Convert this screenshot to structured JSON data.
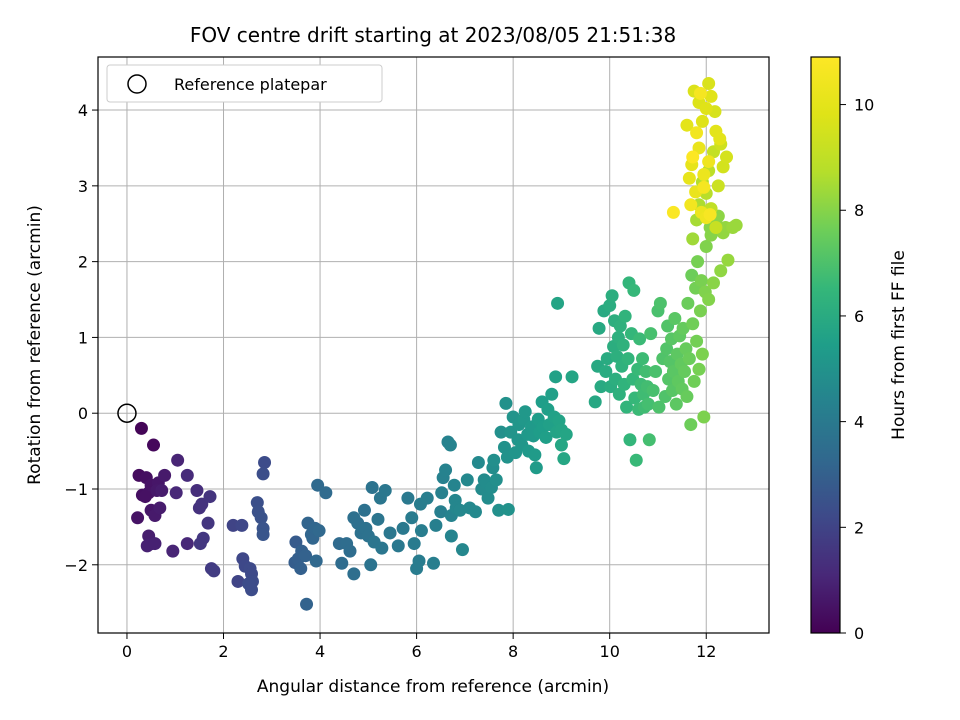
{
  "chart_data": {
    "type": "scatter",
    "title": "FOV centre drift starting at 2023/08/05 21:51:38",
    "xlabel": "Angular distance from reference (arcmin)",
    "ylabel": "Rotation from reference (arcmin)",
    "xlim": [
      -0.6,
      13.3
    ],
    "ylim": [
      -2.9,
      4.7
    ],
    "xticks": [
      0,
      2,
      4,
      6,
      8,
      10,
      12
    ],
    "yticks": [
      -2,
      -1,
      0,
      1,
      2,
      3,
      4
    ],
    "grid": true,
    "legend": {
      "placement": "top-left",
      "entries": [
        "Reference platepar"
      ]
    },
    "reference_point": {
      "x": 0,
      "y": 0,
      "label": "Reference platepar"
    },
    "colorbar": {
      "label": "Hours from first FF file",
      "colormap": "viridis",
      "range": [
        0,
        10.9
      ],
      "ticks": [
        0,
        2,
        4,
        6,
        8,
        10
      ]
    },
    "points": [
      [
        0.3,
        -0.2,
        0.1
      ],
      [
        0.55,
        -0.42,
        0.2
      ],
      [
        0.25,
        -0.82,
        0.3
      ],
      [
        0.4,
        -0.85,
        0.4
      ],
      [
        0.5,
        -0.95,
        0.5
      ],
      [
        0.32,
        -1.08,
        0.4
      ],
      [
        0.45,
        -1.05,
        0.5
      ],
      [
        0.38,
        -1.1,
        0.45
      ],
      [
        0.65,
        -0.92,
        0.6
      ],
      [
        0.78,
        -0.82,
        0.7
      ],
      [
        0.62,
        -1.02,
        0.65
      ],
      [
        0.72,
        -1.02,
        0.75
      ],
      [
        0.22,
        -1.38,
        0.5
      ],
      [
        0.5,
        -1.28,
        0.6
      ],
      [
        0.58,
        -1.35,
        0.7
      ],
      [
        0.68,
        -1.25,
        0.75
      ],
      [
        0.45,
        -1.62,
        0.8
      ],
      [
        0.52,
        -1.72,
        0.85
      ],
      [
        0.42,
        -1.75,
        0.9
      ],
      [
        0.58,
        -1.72,
        0.9
      ],
      [
        0.95,
        -1.82,
        1.0
      ],
      [
        1.25,
        -1.72,
        1.1
      ],
      [
        1.05,
        -0.62,
        1.0
      ],
      [
        1.02,
        -1.05,
        1.1
      ],
      [
        1.25,
        -0.82,
        1.2
      ],
      [
        1.45,
        -1.02,
        1.3
      ],
      [
        1.5,
        -1.25,
        1.4
      ],
      [
        1.55,
        -1.2,
        1.45
      ],
      [
        1.72,
        -1.1,
        1.5
      ],
      [
        1.68,
        -1.45,
        1.55
      ],
      [
        1.58,
        -1.65,
        1.6
      ],
      [
        1.52,
        -1.72,
        1.6
      ],
      [
        1.75,
        -2.05,
        1.7
      ],
      [
        1.8,
        -2.08,
        1.75
      ],
      [
        2.2,
        -1.48,
        2.0
      ],
      [
        2.38,
        -1.48,
        2.1
      ],
      [
        2.3,
        -2.22,
        2.0
      ],
      [
        2.4,
        -1.92,
        2.1
      ],
      [
        2.45,
        -2.02,
        2.15
      ],
      [
        2.55,
        -2.05,
        2.2
      ],
      [
        2.58,
        -2.12,
        2.2
      ],
      [
        2.6,
        -2.22,
        2.25
      ],
      [
        2.52,
        -2.25,
        2.3
      ],
      [
        2.58,
        -2.33,
        2.3
      ],
      [
        2.85,
        -0.65,
        2.3
      ],
      [
        2.82,
        -0.8,
        2.35
      ],
      [
        2.7,
        -1.18,
        2.4
      ],
      [
        2.72,
        -1.3,
        2.45
      ],
      [
        2.78,
        -1.38,
        2.5
      ],
      [
        2.82,
        -1.52,
        2.55
      ],
      [
        2.82,
        -1.6,
        2.6
      ],
      [
        3.5,
        -1.7,
        2.8
      ],
      [
        3.48,
        -1.97,
        2.9
      ],
      [
        3.55,
        -1.92,
        2.95
      ],
      [
        3.6,
        -2.05,
        3.0
      ],
      [
        3.62,
        -1.82,
        3.0
      ],
      [
        3.7,
        -1.88,
        3.05
      ],
      [
        3.72,
        -2.52,
        3.1
      ],
      [
        3.75,
        -1.45,
        3.15
      ],
      [
        3.82,
        -1.6,
        3.2
      ],
      [
        3.85,
        -1.65,
        3.2
      ],
      [
        3.9,
        -1.52,
        3.25
      ],
      [
        3.92,
        -1.95,
        3.3
      ],
      [
        3.98,
        -1.55,
        3.3
      ],
      [
        3.95,
        -0.95,
        3.35
      ],
      [
        4.12,
        -1.05,
        3.4
      ],
      [
        4.4,
        -1.72,
        3.4
      ],
      [
        4.45,
        -1.98,
        3.45
      ],
      [
        4.55,
        -1.72,
        3.5
      ],
      [
        4.62,
        -1.82,
        3.5
      ],
      [
        4.7,
        -2.12,
        3.55
      ],
      [
        4.7,
        -1.38,
        3.6
      ],
      [
        4.78,
        -1.45,
        3.6
      ],
      [
        4.85,
        -1.58,
        3.65
      ],
      [
        4.92,
        -1.28,
        3.65
      ],
      [
        4.95,
        -1.52,
        3.7
      ],
      [
        5.0,
        -1.62,
        3.7
      ],
      [
        5.08,
        -0.98,
        3.75
      ],
      [
        5.05,
        -2.0,
        3.75
      ],
      [
        5.12,
        -1.7,
        3.8
      ],
      [
        5.2,
        -1.4,
        3.8
      ],
      [
        5.25,
        -1.12,
        3.85
      ],
      [
        5.28,
        -1.78,
        3.85
      ],
      [
        5.35,
        -1.02,
        3.9
      ],
      [
        5.45,
        -1.58,
        3.9
      ],
      [
        5.62,
        -1.75,
        3.95
      ],
      [
        5.72,
        -1.52,
        4.0
      ],
      [
        5.82,
        -1.12,
        4.0
      ],
      [
        5.9,
        -1.38,
        4.05
      ],
      [
        5.95,
        -1.72,
        4.05
      ],
      [
        6.0,
        -2.05,
        4.1
      ],
      [
        6.05,
        -1.95,
        4.1
      ],
      [
        6.08,
        -1.2,
        4.15
      ],
      [
        6.1,
        -1.55,
        4.15
      ],
      [
        6.22,
        -1.12,
        4.2
      ],
      [
        6.35,
        -1.98,
        4.2
      ],
      [
        6.4,
        -1.48,
        4.25
      ],
      [
        6.5,
        -1.3,
        4.25
      ],
      [
        6.52,
        -1.05,
        4.3
      ],
      [
        6.55,
        -0.85,
        4.3
      ],
      [
        6.6,
        -0.75,
        4.35
      ],
      [
        6.65,
        -0.38,
        4.35
      ],
      [
        6.7,
        -0.42,
        4.4
      ],
      [
        6.72,
        -1.35,
        4.4
      ],
      [
        6.72,
        -1.62,
        4.45
      ],
      [
        6.78,
        -0.95,
        4.45
      ],
      [
        6.8,
        -1.15,
        4.5
      ],
      [
        6.82,
        -1.25,
        4.5
      ],
      [
        6.9,
        -1.28,
        4.55
      ],
      [
        6.95,
        -1.8,
        4.55
      ],
      [
        7.05,
        -0.88,
        4.6
      ],
      [
        7.1,
        -1.25,
        4.6
      ],
      [
        7.22,
        -1.3,
        4.65
      ],
      [
        7.28,
        -0.65,
        4.65
      ],
      [
        7.35,
        -1.0,
        4.7
      ],
      [
        7.4,
        -0.88,
        4.7
      ],
      [
        7.45,
        -0.92,
        4.75
      ],
      [
        7.48,
        -1.12,
        4.75
      ],
      [
        7.55,
        -0.98,
        4.8
      ],
      [
        7.58,
        -0.72,
        4.8
      ],
      [
        7.6,
        -0.62,
        4.85
      ],
      [
        7.65,
        -0.88,
        4.85
      ],
      [
        7.7,
        -1.28,
        4.9
      ],
      [
        7.75,
        -0.25,
        4.9
      ],
      [
        7.82,
        -0.45,
        4.95
      ],
      [
        7.85,
        0.13,
        4.95
      ],
      [
        7.88,
        -0.58,
        5.0
      ],
      [
        7.9,
        -1.27,
        5.0
      ],
      [
        7.95,
        -0.25,
        5.05
      ],
      [
        8.0,
        -0.05,
        5.05
      ],
      [
        8.05,
        -0.52,
        5.1
      ],
      [
        8.1,
        -0.35,
        5.1
      ],
      [
        8.12,
        -0.15,
        5.15
      ],
      [
        8.18,
        -0.42,
        5.15
      ],
      [
        8.22,
        -0.08,
        5.2
      ],
      [
        8.25,
        0.02,
        5.2
      ],
      [
        8.3,
        -0.28,
        5.25
      ],
      [
        8.32,
        -0.5,
        5.25
      ],
      [
        8.38,
        -0.18,
        5.3
      ],
      [
        8.42,
        -0.3,
        5.3
      ],
      [
        8.45,
        -0.55,
        5.35
      ],
      [
        8.48,
        -0.72,
        5.35
      ],
      [
        8.52,
        -0.08,
        5.4
      ],
      [
        8.55,
        -0.25,
        5.4
      ],
      [
        8.6,
        0.15,
        5.45
      ],
      [
        8.62,
        -0.18,
        5.45
      ],
      [
        8.68,
        -0.32,
        5.5
      ],
      [
        8.72,
        0.05,
        5.5
      ],
      [
        8.75,
        -0.15,
        5.55
      ],
      [
        8.8,
        0.25,
        5.55
      ],
      [
        8.85,
        -0.05,
        5.6
      ],
      [
        8.88,
        0.48,
        5.6
      ],
      [
        8.9,
        -0.25,
        5.65
      ],
      [
        8.95,
        -0.1,
        5.65
      ],
      [
        8.92,
        1.45,
        5.7
      ],
      [
        9.0,
        -0.22,
        5.7
      ],
      [
        9.1,
        -0.28,
        5.75
      ],
      [
        9.22,
        0.48,
        5.75
      ],
      [
        9.05,
        -0.6,
        5.8
      ],
      [
        9.0,
        -0.42,
        5.8
      ],
      [
        9.7,
        0.15,
        5.85
      ],
      [
        9.75,
        0.62,
        5.9
      ],
      [
        9.78,
        1.12,
        5.9
      ],
      [
        9.82,
        0.35,
        5.95
      ],
      [
        9.88,
        1.35,
        5.95
      ],
      [
        9.92,
        0.55,
        6.0
      ],
      [
        9.95,
        0.72,
        6.0
      ],
      [
        10.0,
        1.42,
        6.05
      ],
      [
        10.02,
        0.35,
        6.05
      ],
      [
        10.05,
        1.55,
        6.1
      ],
      [
        10.08,
        0.88,
        6.1
      ],
      [
        10.1,
        1.22,
        6.15
      ],
      [
        10.12,
        0.45,
        6.15
      ],
      [
        10.15,
        0.75,
        6.2
      ],
      [
        10.18,
        1.0,
        6.2
      ],
      [
        10.2,
        0.25,
        6.25
      ],
      [
        10.22,
        1.15,
        6.25
      ],
      [
        10.25,
        0.62,
        6.3
      ],
      [
        10.28,
        0.9,
        6.3
      ],
      [
        10.3,
        0.38,
        6.35
      ],
      [
        10.32,
        1.28,
        6.35
      ],
      [
        10.35,
        0.08,
        6.4
      ],
      [
        10.38,
        0.72,
        6.4
      ],
      [
        10.4,
        1.72,
        6.45
      ],
      [
        10.42,
        -0.35,
        6.45
      ],
      [
        10.45,
        1.05,
        6.5
      ],
      [
        10.48,
        0.45,
        6.5
      ],
      [
        10.5,
        1.62,
        6.55
      ],
      [
        10.52,
        0.2,
        6.55
      ],
      [
        10.55,
        -0.62,
        6.6
      ],
      [
        10.58,
        0.58,
        6.6
      ],
      [
        10.6,
        0.05,
        6.65
      ],
      [
        10.62,
        0.98,
        6.65
      ],
      [
        10.65,
        0.38,
        6.7
      ],
      [
        10.68,
        0.72,
        6.7
      ],
      [
        10.7,
        0.25,
        6.75
      ],
      [
        10.72,
        0.08,
        6.75
      ],
      [
        10.75,
        0.55,
        6.8
      ],
      [
        10.78,
        0.35,
        6.8
      ],
      [
        10.8,
        0.12,
        6.85
      ],
      [
        10.82,
        -0.35,
        6.85
      ],
      [
        10.85,
        1.05,
        6.9
      ],
      [
        10.9,
        0.3,
        6.9
      ],
      [
        10.95,
        0.55,
        6.95
      ],
      [
        11.0,
        1.35,
        6.95
      ],
      [
        11.02,
        0.08,
        7.0
      ],
      [
        11.05,
        1.45,
        7.0
      ],
      [
        11.1,
        0.72,
        7.05
      ],
      [
        11.15,
        0.22,
        7.05
      ],
      [
        11.18,
        0.85,
        7.1
      ],
      [
        11.2,
        1.15,
        7.1
      ],
      [
        11.22,
        0.45,
        7.15
      ],
      [
        11.25,
        0.68,
        7.15
      ],
      [
        11.28,
        0.98,
        7.2
      ],
      [
        11.3,
        0.3,
        7.2
      ],
      [
        11.32,
        0.55,
        7.25
      ],
      [
        11.35,
        1.25,
        7.25
      ],
      [
        11.38,
        0.12,
        7.3
      ],
      [
        11.4,
        0.78,
        7.3
      ],
      [
        11.42,
        0.42,
        7.35
      ],
      [
        11.45,
        1.02,
        7.35
      ],
      [
        11.48,
        0.65,
        7.4
      ],
      [
        11.5,
        0.32,
        7.4
      ],
      [
        11.52,
        1.12,
        7.45
      ],
      [
        11.55,
        0.55,
        7.45
      ],
      [
        11.58,
        0.85,
        7.5
      ],
      [
        11.6,
        0.22,
        7.5
      ],
      [
        11.62,
        1.45,
        7.55
      ],
      [
        11.65,
        0.72,
        7.55
      ],
      [
        11.68,
        -0.15,
        7.6
      ],
      [
        11.7,
        1.82,
        7.6
      ],
      [
        11.72,
        1.18,
        7.65
      ],
      [
        11.75,
        0.42,
        7.65
      ],
      [
        11.78,
        1.65,
        7.7
      ],
      [
        11.8,
        0.95,
        7.7
      ],
      [
        11.82,
        2.0,
        7.75
      ],
      [
        11.85,
        0.58,
        7.75
      ],
      [
        11.88,
        1.35,
        7.8
      ],
      [
        11.9,
        1.75,
        7.8
      ],
      [
        11.92,
        0.78,
        7.85
      ],
      [
        11.95,
        -0.05,
        7.85
      ],
      [
        11.98,
        1.6,
        7.9
      ],
      [
        12.0,
        2.2,
        7.9
      ],
      [
        12.05,
        1.5,
        7.95
      ],
      [
        12.08,
        2.45,
        8.0
      ],
      [
        12.1,
        2.35,
        8.0
      ],
      [
        12.15,
        1.72,
        8.05
      ],
      [
        12.2,
        2.52,
        8.1
      ],
      [
        12.25,
        2.6,
        8.1
      ],
      [
        12.3,
        1.88,
        8.15
      ],
      [
        12.35,
        2.38,
        8.2
      ],
      [
        12.4,
        2.45,
        8.2
      ],
      [
        12.45,
        2.02,
        8.25
      ],
      [
        12.55,
        2.45,
        8.3
      ],
      [
        12.62,
        2.48,
        8.3
      ],
      [
        11.72,
        2.3,
        8.4
      ],
      [
        11.8,
        2.55,
        8.5
      ],
      [
        11.85,
        2.75,
        8.6
      ],
      [
        11.92,
        3.05,
        8.7
      ],
      [
        12.0,
        2.9,
        8.8
      ],
      [
        12.05,
        3.2,
        8.9
      ],
      [
        12.1,
        2.7,
        9.0
      ],
      [
        12.15,
        3.45,
        9.1
      ],
      [
        12.2,
        2.45,
        9.2
      ],
      [
        12.25,
        3.0,
        9.3
      ],
      [
        12.3,
        3.55,
        9.4
      ],
      [
        12.35,
        3.25,
        9.5
      ],
      [
        12.42,
        3.38,
        9.55
      ],
      [
        12.18,
        3.98,
        9.6
      ],
      [
        12.05,
        4.35,
        9.65
      ],
      [
        11.75,
        4.25,
        9.7
      ],
      [
        11.85,
        4.1,
        9.75
      ],
      [
        11.92,
        3.85,
        9.8
      ],
      [
        12.0,
        4.02,
        9.85
      ],
      [
        12.1,
        4.18,
        9.9
      ],
      [
        12.2,
        3.72,
        9.95
      ],
      [
        12.28,
        3.62,
        10.0
      ],
      [
        11.6,
        3.8,
        10.0
      ],
      [
        11.65,
        3.1,
        10.1
      ],
      [
        11.7,
        3.28,
        10.1
      ],
      [
        11.78,
        2.92,
        10.2
      ],
      [
        11.85,
        3.5,
        10.2
      ],
      [
        11.9,
        2.65,
        10.3
      ],
      [
        11.95,
        3.15,
        10.3
      ],
      [
        12.0,
        2.58,
        10.4
      ],
      [
        12.05,
        3.32,
        10.4
      ],
      [
        11.68,
        2.75,
        10.5
      ],
      [
        11.8,
        3.7,
        10.5
      ],
      [
        11.88,
        4.22,
        10.6
      ],
      [
        11.95,
        2.98,
        10.6
      ],
      [
        12.08,
        2.62,
        10.7
      ],
      [
        11.32,
        2.65,
        10.8
      ],
      [
        11.72,
        3.38,
        10.85
      ]
    ]
  }
}
